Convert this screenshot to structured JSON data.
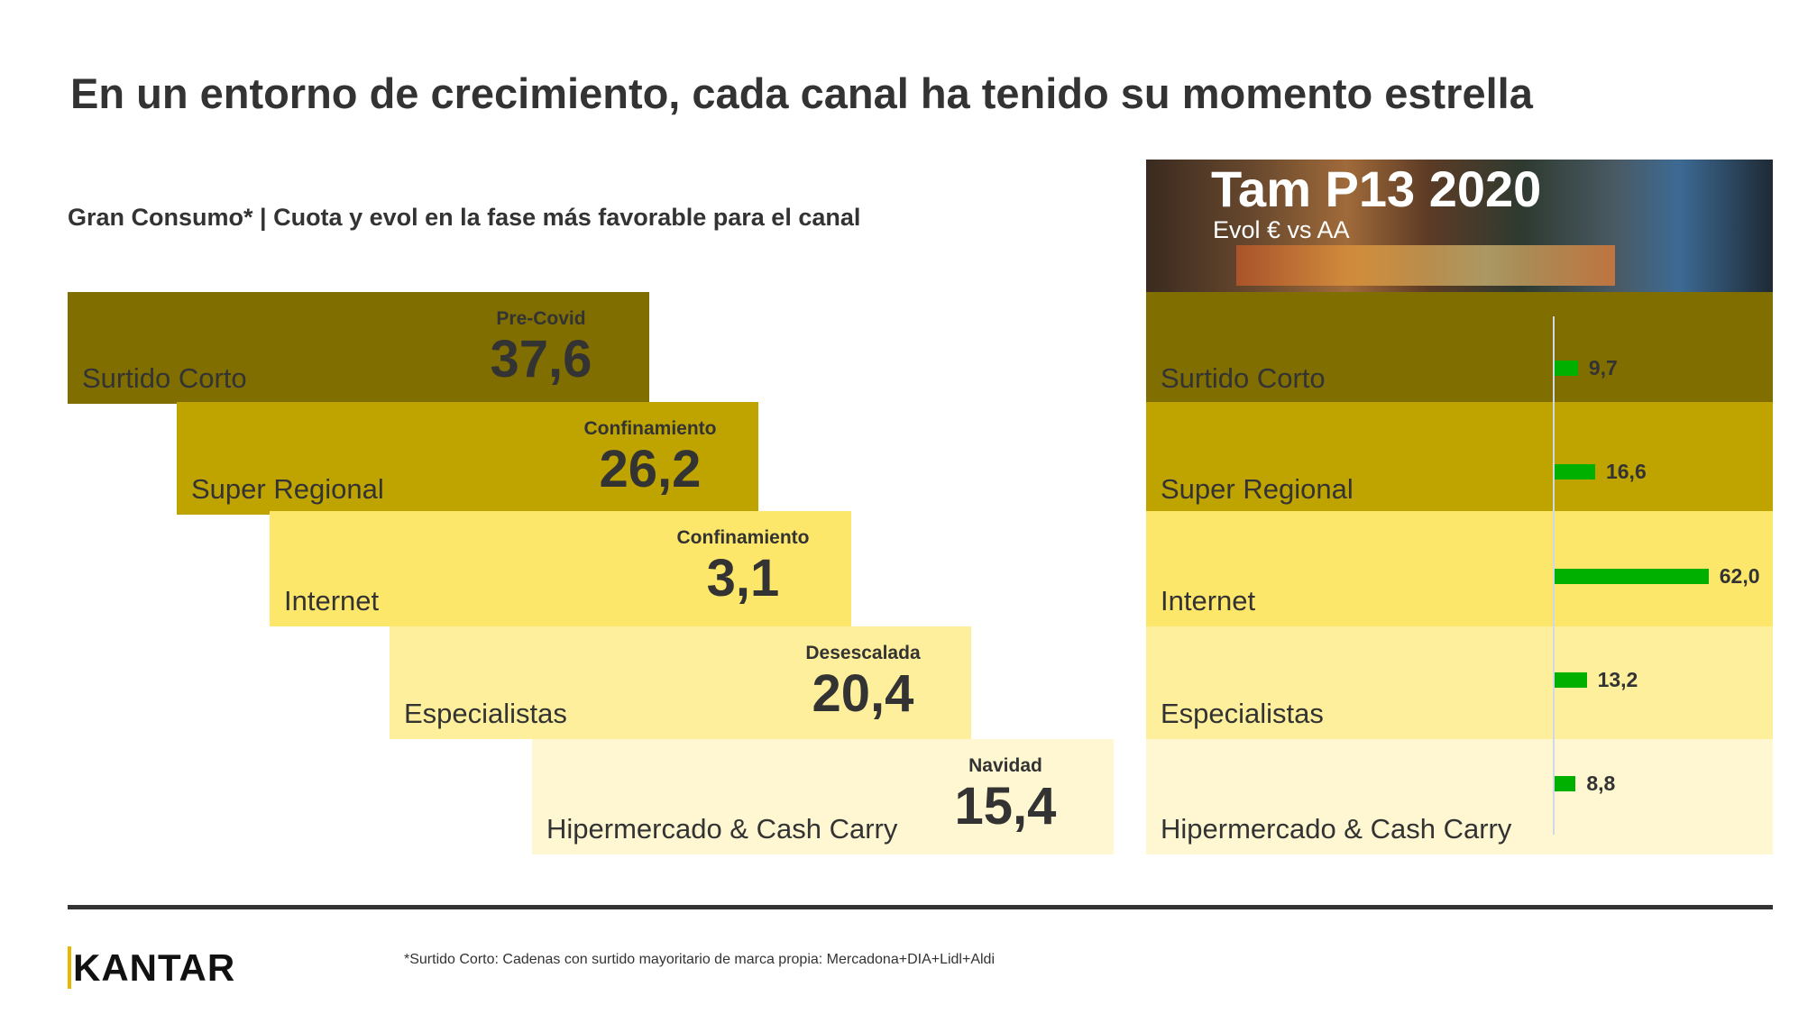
{
  "title": "En un entorno de crecimiento, cada canal ha tenido su momento estrella",
  "subtitle": "Gran Consumo* | Cuota y evol en la fase más favorable para el canal",
  "panel": {
    "title": "Tam P13 2020",
    "subtitle": "Evol € vs AA"
  },
  "chart_data": [
    {
      "type": "table",
      "title": "",
      "categories": [
        "Surtido Corto",
        "Super Regional",
        "Internet",
        "Especialistas",
        "Hipermercado & Cash Carry"
      ],
      "phases": [
        "Pre-Covid",
        "Confinamiento",
        "Confinamiento",
        "Desescalada",
        "Navidad"
      ],
      "values": [
        "37,6",
        "26,2",
        "3,1",
        "20,4",
        "15,4"
      ],
      "colors": [
        "#806e00",
        "#bfa400",
        "#fde76a",
        "#fdef9c",
        "#fef7d1"
      ]
    },
    {
      "type": "bar",
      "title": "Tam P13 2020",
      "subtitle": "Evol € vs AA",
      "orientation": "horizontal",
      "categories": [
        "Surtido Corto",
        "Super Regional",
        "Internet",
        "Especialistas",
        "Hipermercado & Cash Carry"
      ],
      "values": [
        9.7,
        16.6,
        62.0,
        13.2,
        8.8
      ],
      "labels": [
        "9,7",
        "16,6",
        "62,0",
        "13,2",
        "8,8"
      ],
      "bar_color": "#00b000"
    }
  ],
  "logo": "KANTAR",
  "footnote": "*Surtido Corto: Cadenas con surtido mayoritario de marca propia: Mercadona+DIA+Lidl+Aldi"
}
